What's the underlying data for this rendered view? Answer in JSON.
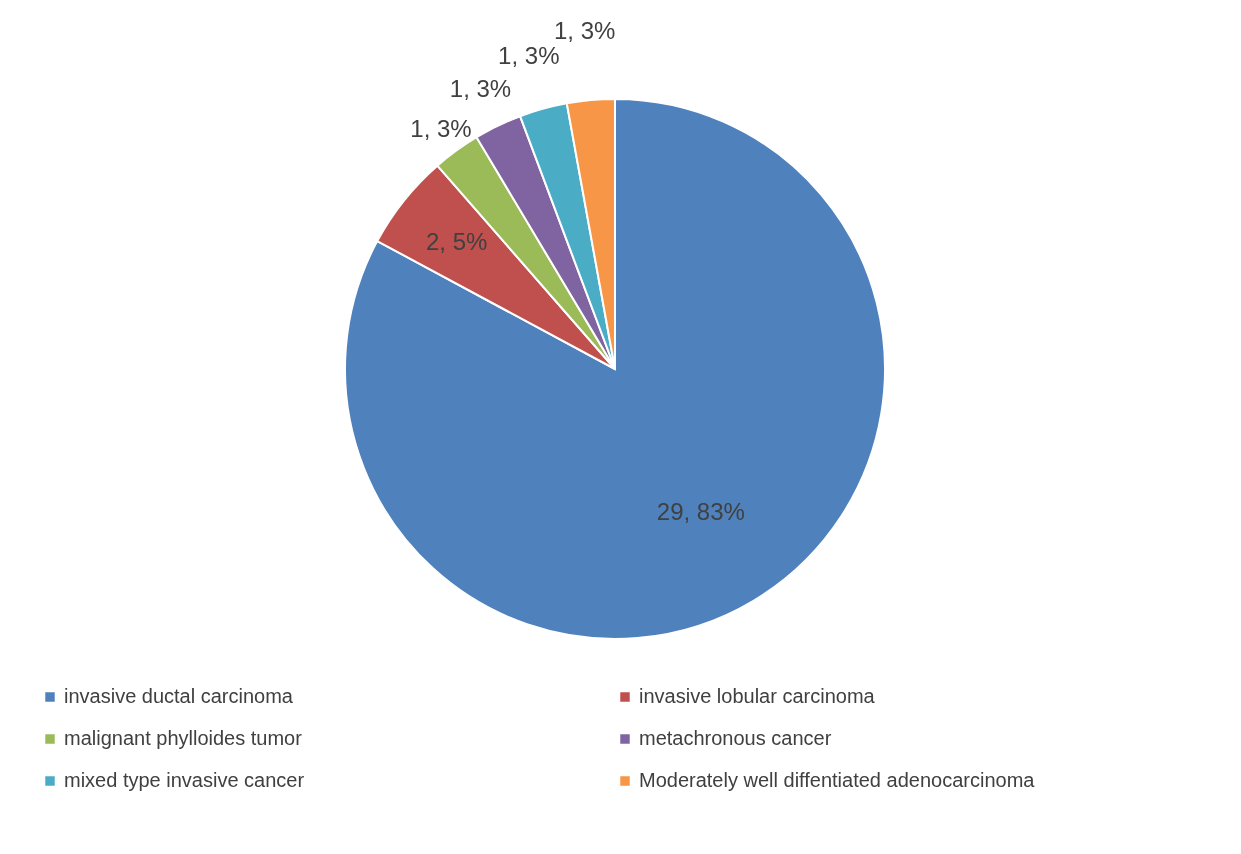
{
  "chart_data": {
    "type": "pie",
    "categories": [
      "invasive ductal carcinoma",
      "invasive lobular carcinoma",
      "malignant phylloides tumor",
      "metachronous cancer",
      "mixed type invasive cancer",
      "Moderately well diffentiated adenocarcinoma"
    ],
    "values": [
      29,
      2,
      1,
      1,
      1,
      1
    ],
    "colors": [
      "#4f81bd",
      "#c0504d",
      "#9bbb59",
      "#8064a2",
      "#4bacc6",
      "#f79646"
    ],
    "value_labels": [
      "29, 83%",
      "2, 5%",
      "1, 3%",
      "1, 3%",
      "1, 3%",
      "1, 3%"
    ],
    "legend": "bottom"
  }
}
